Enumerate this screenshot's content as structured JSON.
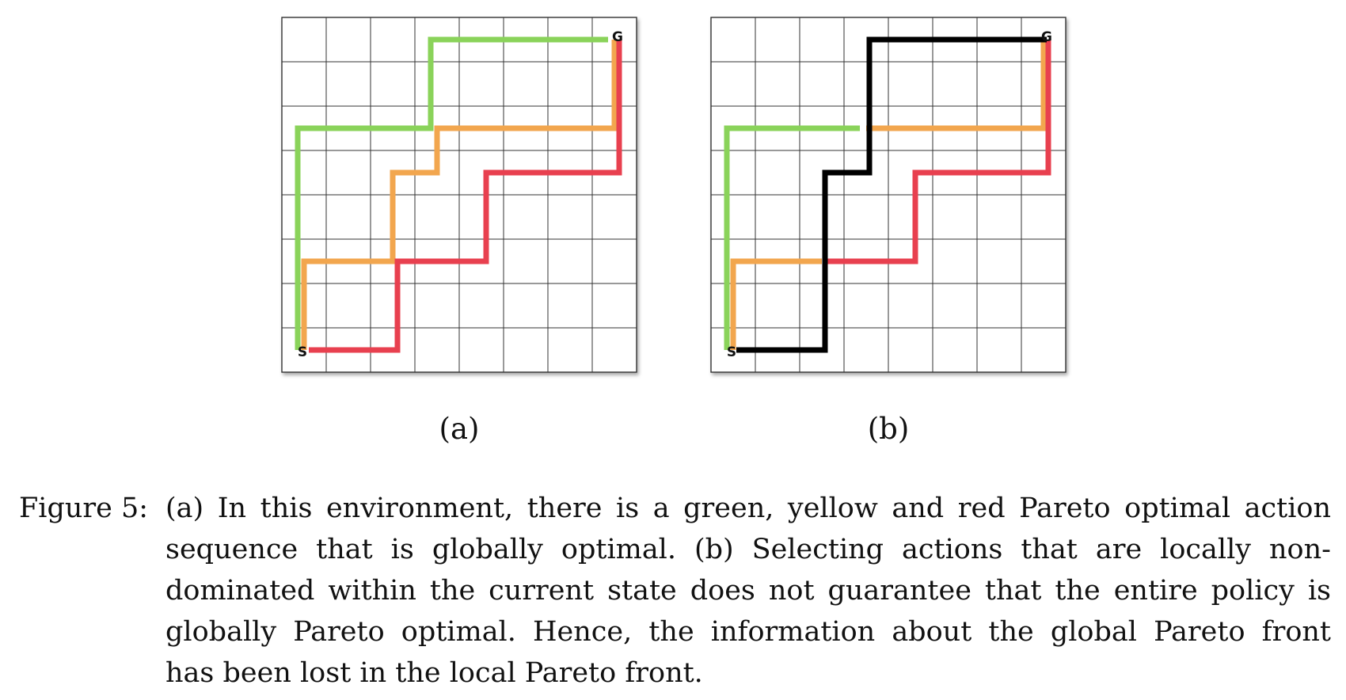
{
  "colors": {
    "green": "#8ad35a",
    "yellow": "#f2a64e",
    "red": "#e8404f",
    "black": "#000000",
    "grid": "#333333"
  },
  "grid": {
    "cols": 8,
    "rows": 8
  },
  "panels": [
    {
      "id": "a",
      "sublabel": "(a)",
      "start_label": "S",
      "goal_label": "G",
      "paths": [
        {
          "color": "green",
          "cells": [
            [
              0,
              0
            ],
            [
              0,
              5
            ],
            [
              3,
              5
            ],
            [
              3,
              7
            ],
            [
              7,
              7
            ]
          ]
        },
        {
          "color": "yellow",
          "cells": [
            [
              0,
              0
            ],
            [
              0,
              2
            ],
            [
              2,
              2
            ],
            [
              2,
              4
            ],
            [
              3,
              4
            ],
            [
              3,
              5
            ],
            [
              7,
              5
            ],
            [
              7,
              7
            ]
          ]
        },
        {
          "color": "red",
          "cells": [
            [
              0,
              0
            ],
            [
              2,
              0
            ],
            [
              2,
              2
            ],
            [
              4,
              2
            ],
            [
              4,
              4
            ],
            [
              7,
              4
            ],
            [
              7,
              7
            ]
          ]
        }
      ]
    },
    {
      "id": "b",
      "sublabel": "(b)",
      "start_label": "S",
      "goal_label": "G",
      "paths": [
        {
          "color": "green",
          "cells": [
            [
              0,
              0
            ],
            [
              0,
              5
            ],
            [
              3,
              5
            ]
          ]
        },
        {
          "color": "yellow",
          "cells": [
            [
              0,
              0
            ],
            [
              0,
              2
            ],
            [
              2,
              2
            ]
          ]
        },
        {
          "color": "yellow",
          "cells": [
            [
              3,
              5
            ],
            [
              7,
              5
            ],
            [
              7,
              7
            ]
          ]
        },
        {
          "color": "red",
          "cells": [
            [
              2,
              2
            ],
            [
              4,
              2
            ],
            [
              4,
              4
            ],
            [
              7,
              4
            ],
            [
              7,
              7
            ]
          ]
        },
        {
          "color": "black",
          "cells": [
            [
              0,
              0
            ],
            [
              2,
              0
            ],
            [
              2,
              4
            ],
            [
              3,
              4
            ],
            [
              3,
              7
            ],
            [
              7,
              7
            ]
          ]
        }
      ]
    }
  ],
  "caption": {
    "label": "Figure 5:",
    "lines": [
      "(a) In this environment, there is a green, yellow and red Pareto optimal action",
      "sequence that is globally optimal.  (b) Selecting actions that are locally non-",
      "dominated within the current state does not guarantee that the entire policy is",
      "globally Pareto optimal.  Hence, the information about the global Pareto front",
      "has been lost in the local Pareto front."
    ]
  }
}
